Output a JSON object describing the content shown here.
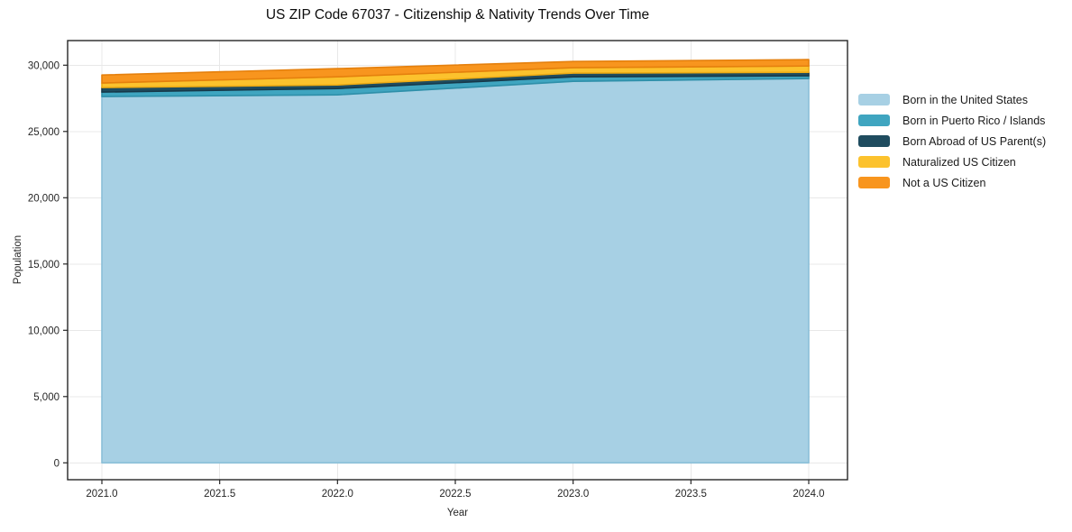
{
  "chart_data": {
    "type": "area",
    "stacked": true,
    "title": "US ZIP Code 67037 - Citizenship & Nativity Trends Over Time",
    "xlabel": "Year",
    "ylabel": "Population",
    "x": [
      2021,
      2022,
      2023,
      2024
    ],
    "x_tick_values": [
      2021.0,
      2021.5,
      2022.0,
      2022.5,
      2023.0,
      2023.5,
      2024.0
    ],
    "x_tick_labels": [
      "2021.0",
      "2021.5",
      "2022.0",
      "2022.5",
      "2023.0",
      "2023.5",
      "2024.0"
    ],
    "y_tick_values": [
      0,
      5000,
      10000,
      15000,
      20000,
      25000,
      30000
    ],
    "y_tick_labels": [
      "0",
      "5,000",
      "10,000",
      "15,000",
      "20,000",
      "25,000",
      "30,000"
    ],
    "xlim": [
      2020.855,
      2024.165
    ],
    "ylim": [
      0,
      31800
    ],
    "grid": true,
    "legend_position": "right-outside",
    "series": [
      {
        "name": "Born in the United States",
        "color": "#a7d0e4",
        "edge_color": "#8abfd8",
        "values": [
          27630,
          27760,
          28780,
          28990
        ]
      },
      {
        "name": "Born in Puerto Rico / Islands",
        "color": "#3fa5c0",
        "edge_color": "#2e8fa9",
        "values": [
          340,
          480,
          340,
          205
        ]
      },
      {
        "name": "Born Abroad of US Parent(s)",
        "color": "#1f4c5f",
        "edge_color": "#16394a",
        "values": [
          340,
          270,
          280,
          270
        ]
      },
      {
        "name": "Naturalized US Citizen",
        "color": "#fcc22d",
        "edge_color": "#edab14",
        "values": [
          340,
          610,
          410,
          475
        ]
      },
      {
        "name": "Not a US Citizen",
        "color": "#f8951e",
        "edge_color": "#e5800d",
        "values": [
          610,
          620,
          470,
          480
        ]
      }
    ],
    "totals": [
      29260,
      29740,
      30280,
      30420
    ],
    "style": {
      "grid_color": "#e8e8e8",
      "spine_color": "#262626",
      "tick_label_color": "#262626",
      "background": "#ffffff"
    }
  }
}
